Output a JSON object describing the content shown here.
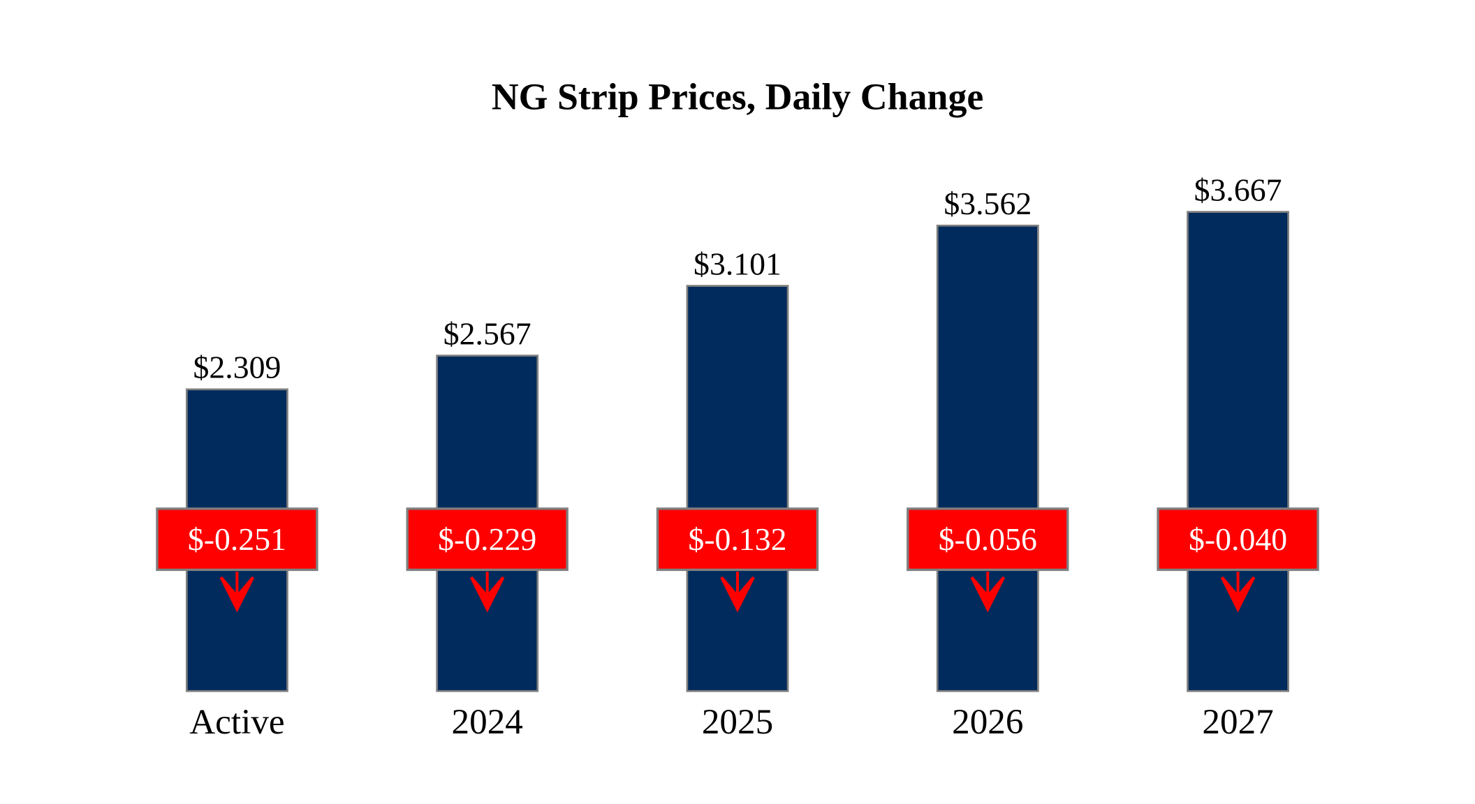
{
  "chart_data": {
    "type": "bar",
    "title": "NG Strip Prices, Daily Change",
    "xlabel": "",
    "ylabel": "",
    "categories": [
      "Active",
      "2024",
      "2025",
      "2026",
      "2027"
    ],
    "values": [
      2.309,
      2.567,
      3.101,
      3.562,
      3.667
    ],
    "value_labels": [
      "$2.309",
      "$2.567",
      "$3.101",
      "$3.562",
      "$3.667"
    ],
    "changes": [
      -0.251,
      -0.229,
      -0.132,
      -0.056,
      -0.04
    ],
    "change_labels": [
      "$-0.251",
      "$-0.229",
      "$-0.132",
      "$-0.056",
      "$-0.040"
    ],
    "change_icon": "down-arrow-icon",
    "grid": false,
    "legend": "none",
    "colors": {
      "bar": "#002b5c",
      "bar_border": "#7f7f7f",
      "change_box": "#ff0000",
      "change_text": "#ffffff",
      "arrow": "#ff0000"
    }
  }
}
